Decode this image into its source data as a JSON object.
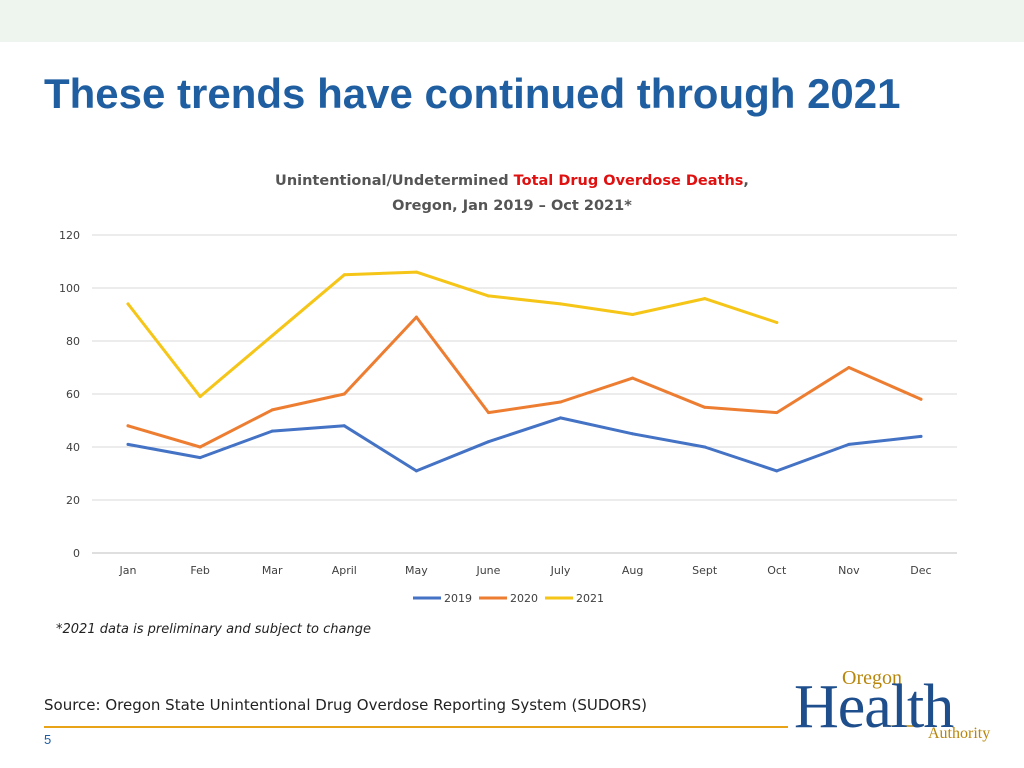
{
  "slide": {
    "title": "These trends have continued through 2021",
    "footnote": "*2021 data is preliminary and subject to change",
    "source": "Source: Oregon State Unintentional Drug Overdose Reporting System (SUDORS)",
    "page_number": "5",
    "logo": {
      "oregon": "Oregon",
      "health": "Health",
      "authority": "Authority"
    }
  },
  "chart_data": {
    "type": "line",
    "title_parts": {
      "prefix": "Unintentional/Undetermined ",
      "highlight": "Total Drug Overdose Deaths",
      "suffix": ",",
      "line2": "Oregon, Jan 2019 – Oct 2021*"
    },
    "highlight_color": "#e01010",
    "categories": [
      "Jan",
      "Feb",
      "Mar",
      "April",
      "May",
      "June",
      "July",
      "Aug",
      "Sept",
      "Oct",
      "Nov",
      "Dec"
    ],
    "yticks": [
      0,
      20,
      40,
      60,
      80,
      100,
      120
    ],
    "ylim": [
      0,
      120
    ],
    "grid": true,
    "legend_position": "bottom",
    "series": [
      {
        "name": "2019",
        "color": "#4472c4",
        "values": [
          41,
          36,
          46,
          48,
          31,
          42,
          51,
          45,
          40,
          31,
          41,
          44
        ]
      },
      {
        "name": "2020",
        "color": "#ed7d31",
        "values": [
          48,
          40,
          54,
          60,
          89,
          53,
          57,
          66,
          55,
          53,
          70,
          58
        ]
      },
      {
        "name": "2021",
        "color": "#f5c518",
        "values": [
          94,
          59,
          82,
          105,
          106,
          97,
          94,
          90,
          96,
          87,
          null,
          null
        ]
      }
    ]
  }
}
